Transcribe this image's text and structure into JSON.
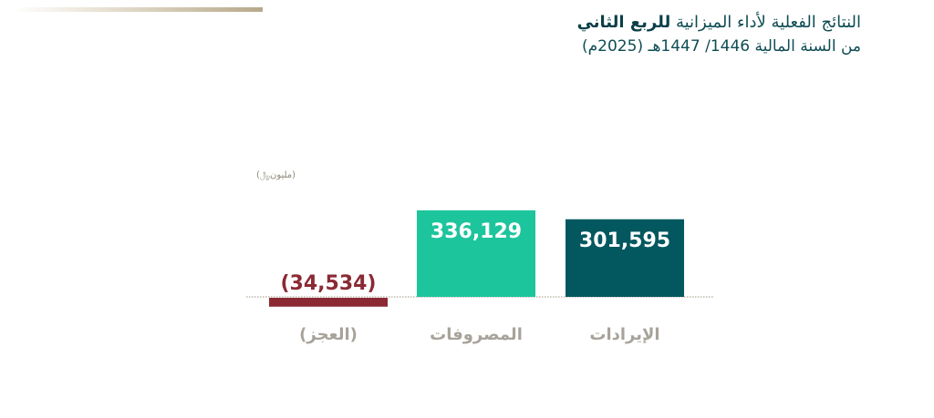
{
  "header": {
    "title_prefix": "النتائج الفعلية لأداء الميزانية",
    "title_bold": "للربع الثاني",
    "subtitle": "من السنة المالية 1446/ 1447هـ (2025م)"
  },
  "unit_label": "(مليون﷼)",
  "colors": {
    "revenue": "#03585f",
    "expenses": "#1dc59c",
    "deficit": "#8b2a34",
    "category_text": "#a7a39a",
    "baseline": "#9c9480"
  },
  "chart_data": {
    "type": "bar",
    "categories": [
      "الإيرادات",
      "المصروفات",
      "(العجز)"
    ],
    "values": [
      301595,
      336129,
      -34534
    ],
    "value_labels": [
      "301,595",
      "336,129",
      "(34,534)"
    ],
    "title": "",
    "xlabel": "",
    "ylabel": "(مليون﷼)",
    "grid": false,
    "legend": "none"
  }
}
